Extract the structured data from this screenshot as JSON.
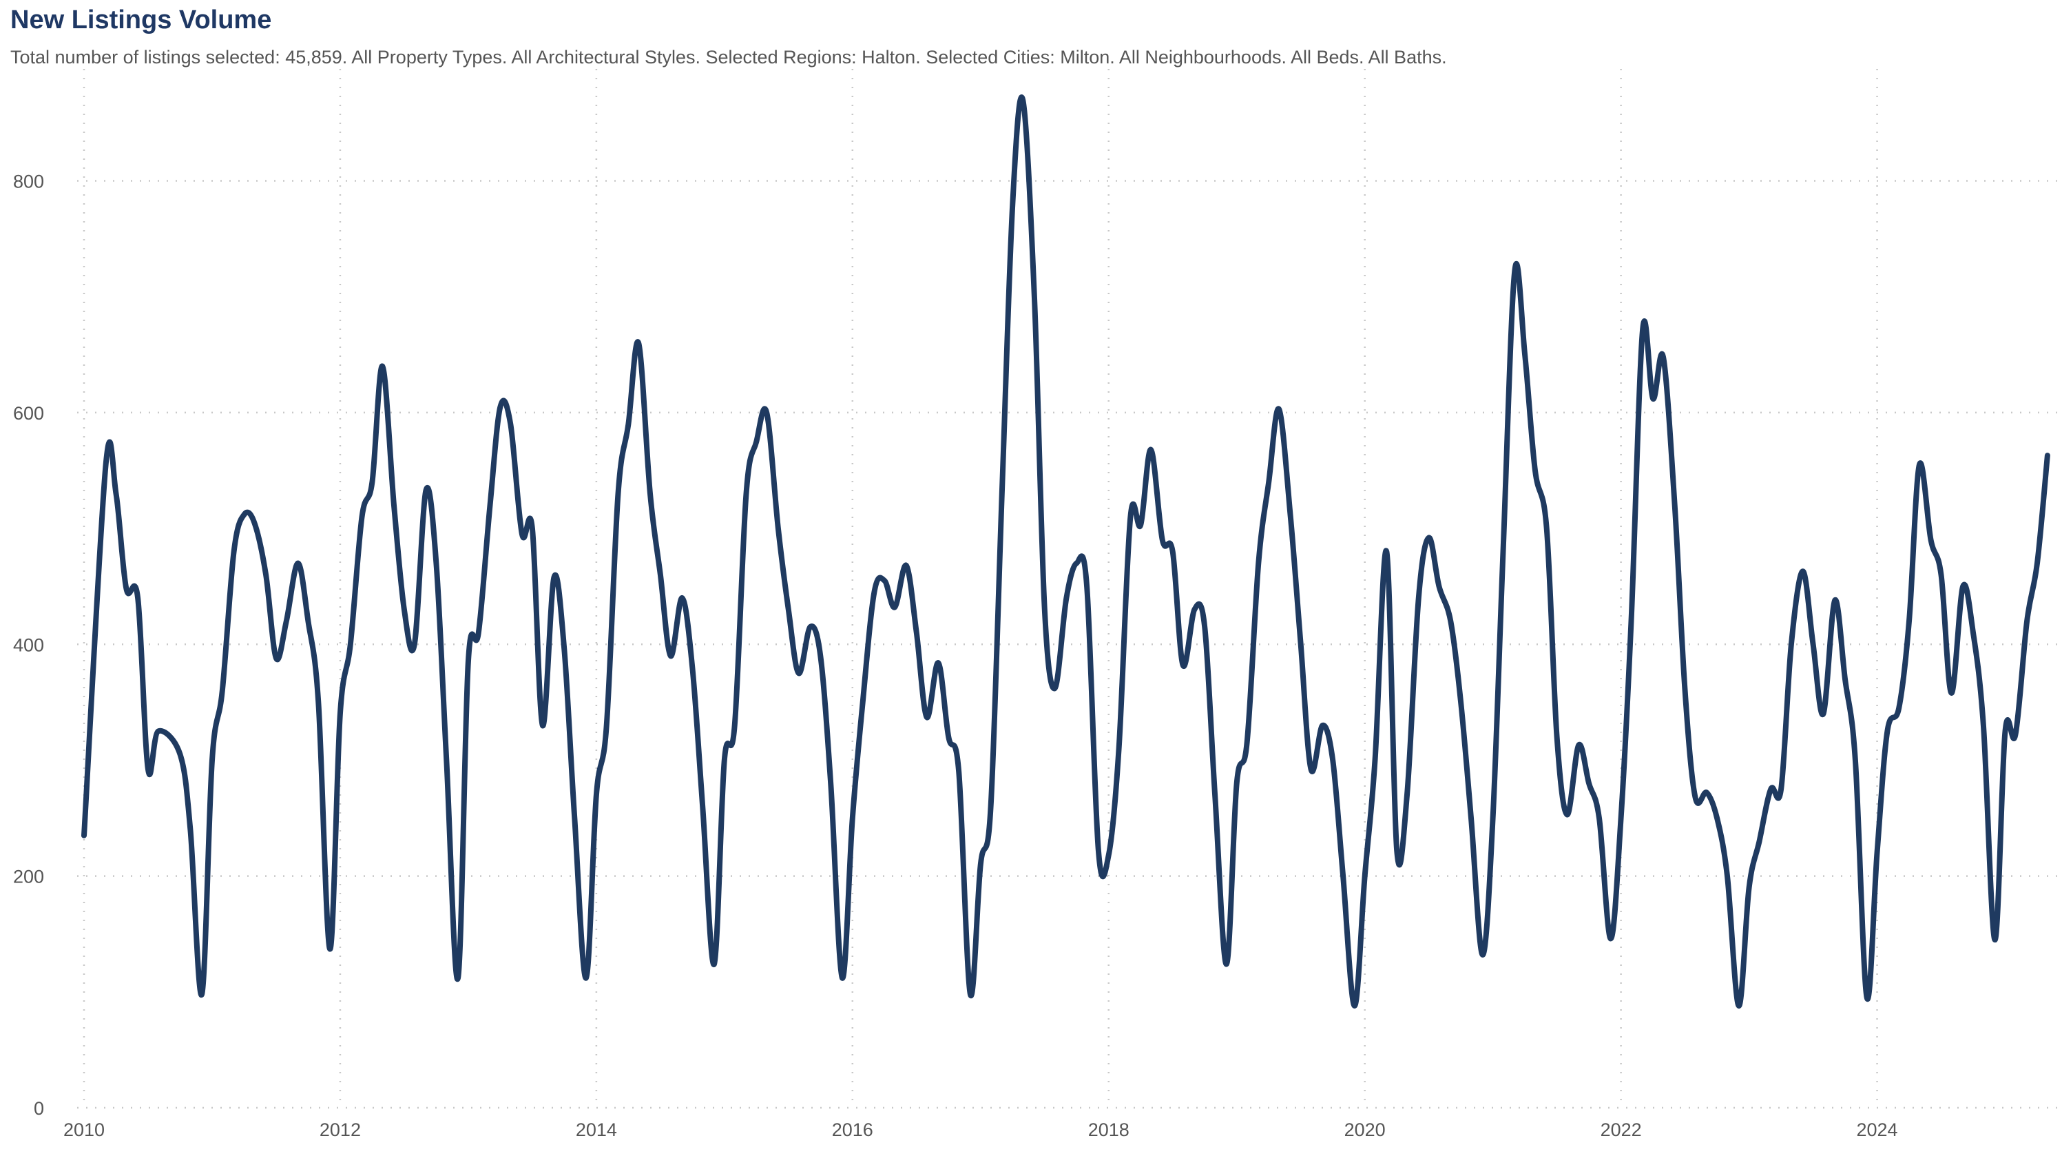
{
  "header": {
    "title": "New Listings Volume",
    "subtitle": "Total number of listings selected: 45,859. All Property Types. All Architectural Styles. Selected Regions: Halton. Selected Cities: Milton. All Neighbourhoods. All Beds. All Baths."
  },
  "colors": {
    "line": "#1f3a60",
    "grid": "#c8c8c8",
    "text": "#555555",
    "title": "#1f3864"
  },
  "chart_data": {
    "type": "line",
    "title": "New Listings Volume",
    "xlabel": "",
    "ylabel": "",
    "xlim": [
      2010.0,
      2025.25
    ],
    "ylim": [
      0,
      880
    ],
    "y_ticks": [
      0,
      200,
      400,
      600,
      800
    ],
    "x_ticks": [
      2010,
      2012,
      2014,
      2016,
      2018,
      2020,
      2022,
      2024
    ],
    "grid": true,
    "legend": "none",
    "series": [
      {
        "values": [
          [
            2010.0,
            235
          ],
          [
            2010.17,
            555
          ],
          [
            2010.25,
            530
          ],
          [
            2010.33,
            448
          ],
          [
            2010.42,
            440
          ],
          [
            2010.5,
            292
          ],
          [
            2010.58,
            325
          ],
          [
            2010.75,
            305
          ],
          [
            2010.83,
            240
          ],
          [
            2010.92,
            98
          ],
          [
            2011.0,
            300
          ],
          [
            2011.08,
            360
          ],
          [
            2011.17,
            480
          ],
          [
            2011.25,
            512
          ],
          [
            2011.33,
            505
          ],
          [
            2011.42,
            460
          ],
          [
            2011.5,
            388
          ],
          [
            2011.58,
            420
          ],
          [
            2011.67,
            470
          ],
          [
            2011.75,
            420
          ],
          [
            2011.83,
            350
          ],
          [
            2011.92,
            137
          ],
          [
            2012.0,
            340
          ],
          [
            2012.08,
            400
          ],
          [
            2012.17,
            510
          ],
          [
            2012.25,
            540
          ],
          [
            2012.33,
            640
          ],
          [
            2012.42,
            520
          ],
          [
            2012.5,
            430
          ],
          [
            2012.58,
            400
          ],
          [
            2012.67,
            533
          ],
          [
            2012.75,
            470
          ],
          [
            2012.83,
            300
          ],
          [
            2012.92,
            112
          ],
          [
            2013.0,
            385
          ],
          [
            2013.08,
            410
          ],
          [
            2013.17,
            520
          ],
          [
            2013.25,
            605
          ],
          [
            2013.33,
            590
          ],
          [
            2013.42,
            495
          ],
          [
            2013.5,
            500
          ],
          [
            2013.58,
            330
          ],
          [
            2013.67,
            458
          ],
          [
            2013.75,
            395
          ],
          [
            2013.83,
            250
          ],
          [
            2013.92,
            112
          ],
          [
            2014.0,
            270
          ],
          [
            2014.08,
            330
          ],
          [
            2014.17,
            530
          ],
          [
            2014.25,
            590
          ],
          [
            2014.33,
            660
          ],
          [
            2014.42,
            530
          ],
          [
            2014.5,
            460
          ],
          [
            2014.58,
            390
          ],
          [
            2014.67,
            440
          ],
          [
            2014.75,
            380
          ],
          [
            2014.83,
            260
          ],
          [
            2014.92,
            124
          ],
          [
            2015.0,
            300
          ],
          [
            2015.08,
            330
          ],
          [
            2015.17,
            530
          ],
          [
            2015.25,
            575
          ],
          [
            2015.33,
            600
          ],
          [
            2015.42,
            500
          ],
          [
            2015.5,
            430
          ],
          [
            2015.58,
            375
          ],
          [
            2015.67,
            415
          ],
          [
            2015.75,
            390
          ],
          [
            2015.83,
            280
          ],
          [
            2015.92,
            112
          ],
          [
            2016.0,
            250
          ],
          [
            2016.08,
            350
          ],
          [
            2016.17,
            445
          ],
          [
            2016.25,
            455
          ],
          [
            2016.33,
            432
          ],
          [
            2016.42,
            468
          ],
          [
            2016.5,
            410
          ],
          [
            2016.58,
            337
          ],
          [
            2016.67,
            384
          ],
          [
            2016.75,
            320
          ],
          [
            2016.83,
            290
          ],
          [
            2016.92,
            98
          ],
          [
            2017.0,
            210
          ],
          [
            2017.08,
            260
          ],
          [
            2017.17,
            540
          ],
          [
            2017.25,
            780
          ],
          [
            2017.33,
            870
          ],
          [
            2017.42,
            700
          ],
          [
            2017.5,
            430
          ],
          [
            2017.58,
            362
          ],
          [
            2017.67,
            440
          ],
          [
            2017.75,
            470
          ],
          [
            2017.83,
            450
          ],
          [
            2017.92,
            222
          ],
          [
            2018.0,
            218
          ],
          [
            2018.08,
            310
          ],
          [
            2018.17,
            510
          ],
          [
            2018.25,
            503
          ],
          [
            2018.33,
            568
          ],
          [
            2018.42,
            490
          ],
          [
            2018.5,
            480
          ],
          [
            2018.58,
            382
          ],
          [
            2018.67,
            430
          ],
          [
            2018.75,
            415
          ],
          [
            2018.83,
            270
          ],
          [
            2018.92,
            124
          ],
          [
            2019.0,
            280
          ],
          [
            2019.08,
            315
          ],
          [
            2019.17,
            470
          ],
          [
            2019.25,
            540
          ],
          [
            2019.33,
            603
          ],
          [
            2019.42,
            510
          ],
          [
            2019.5,
            400
          ],
          [
            2019.58,
            292
          ],
          [
            2019.67,
            330
          ],
          [
            2019.75,
            300
          ],
          [
            2019.83,
            200
          ],
          [
            2019.92,
            88
          ],
          [
            2020.0,
            200
          ],
          [
            2020.08,
            300
          ],
          [
            2020.17,
            480
          ],
          [
            2020.25,
            222
          ],
          [
            2020.33,
            270
          ],
          [
            2020.42,
            440
          ],
          [
            2020.5,
            492
          ],
          [
            2020.58,
            450
          ],
          [
            2020.67,
            420
          ],
          [
            2020.75,
            350
          ],
          [
            2020.83,
            250
          ],
          [
            2020.92,
            132
          ],
          [
            2021.0,
            250
          ],
          [
            2021.08,
            480
          ],
          [
            2021.17,
            722
          ],
          [
            2021.25,
            650
          ],
          [
            2021.33,
            550
          ],
          [
            2021.42,
            500
          ],
          [
            2021.5,
            320
          ],
          [
            2021.58,
            253
          ],
          [
            2021.67,
            313
          ],
          [
            2021.75,
            280
          ],
          [
            2021.83,
            250
          ],
          [
            2021.92,
            146
          ],
          [
            2022.0,
            250
          ],
          [
            2022.08,
            420
          ],
          [
            2022.17,
            672
          ],
          [
            2022.25,
            612
          ],
          [
            2022.33,
            648
          ],
          [
            2022.42,
            520
          ],
          [
            2022.5,
            360
          ],
          [
            2022.58,
            268
          ],
          [
            2022.67,
            272
          ],
          [
            2022.75,
            250
          ],
          [
            2022.83,
            200
          ],
          [
            2022.92,
            88
          ],
          [
            2023.0,
            190
          ],
          [
            2023.08,
            230
          ],
          [
            2023.17,
            275
          ],
          [
            2023.25,
            275
          ],
          [
            2023.33,
            400
          ],
          [
            2023.42,
            463
          ],
          [
            2023.5,
            400
          ],
          [
            2023.58,
            340
          ],
          [
            2023.67,
            438
          ],
          [
            2023.75,
            370
          ],
          [
            2023.83,
            300
          ],
          [
            2023.92,
            95
          ],
          [
            2024.0,
            220
          ],
          [
            2024.08,
            325
          ],
          [
            2024.17,
            345
          ],
          [
            2024.25,
            420
          ],
          [
            2024.33,
            555
          ],
          [
            2024.42,
            490
          ],
          [
            2024.5,
            460
          ],
          [
            2024.58,
            358
          ],
          [
            2024.67,
            450
          ],
          [
            2024.75,
            410
          ],
          [
            2024.83,
            330
          ],
          [
            2024.92,
            145
          ],
          [
            2025.0,
            325
          ],
          [
            2025.08,
            322
          ],
          [
            2025.17,
            420
          ],
          [
            2025.25,
            470
          ],
          [
            2025.33,
            563
          ]
        ]
      }
    ]
  }
}
